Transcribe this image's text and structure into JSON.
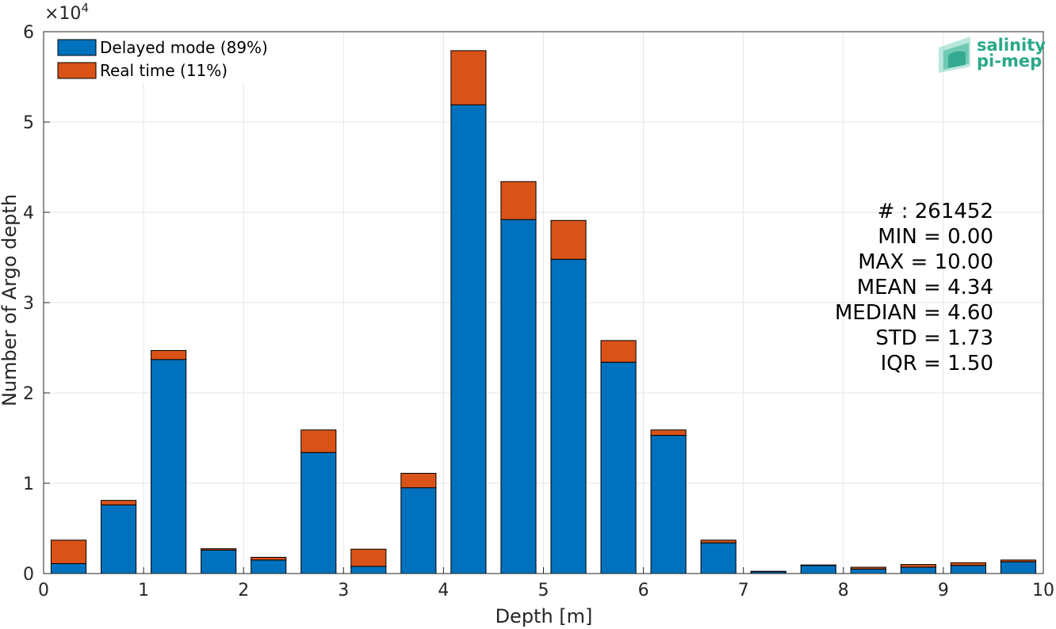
{
  "chart_data": {
    "type": "bar",
    "stacked": true,
    "xlabel": "Depth [m]",
    "ylabel": "Number of Argo depth",
    "y_multiplier_label": "×10",
    "y_multiplier_exponent": "4",
    "xlim": [
      0,
      10
    ],
    "ylim": [
      0,
      60000
    ],
    "xticks": [
      "0",
      "1",
      "2",
      "3",
      "4",
      "5",
      "6",
      "7",
      "8",
      "9",
      "10"
    ],
    "yticks": [
      "0",
      "1",
      "2",
      "3",
      "4",
      "5",
      "6"
    ],
    "grid": true,
    "legend_position": "top-left",
    "bin_centers": [
      0.25,
      0.75,
      1.25,
      1.75,
      2.25,
      2.75,
      3.25,
      3.75,
      4.25,
      4.75,
      5.25,
      5.75,
      6.25,
      6.75,
      7.25,
      7.75,
      8.25,
      8.75,
      9.25,
      9.75
    ],
    "series": [
      {
        "name": "Delayed mode (89%)",
        "color": "#0072BD",
        "values": [
          1100,
          7600,
          23700,
          2600,
          1500,
          13400,
          800,
          9500,
          51900,
          39200,
          34800,
          23400,
          15300,
          3400,
          200,
          900,
          500,
          700,
          900,
          1300
        ]
      },
      {
        "name": "Real time (11%)",
        "color": "#D95319",
        "values": [
          2600,
          500,
          1000,
          150,
          300,
          2500,
          1900,
          1600,
          6000,
          4200,
          4300,
          2400,
          600,
          300,
          50,
          50,
          200,
          300,
          300,
          200
        ]
      }
    ],
    "stats": [
      "# : 261452",
      "MIN = 0.00",
      "MAX =  10.00",
      "MEAN = 4.34",
      "MEDIAN = 4.60",
      "STD = 1.73",
      "IQR = 1.50"
    ]
  },
  "logo": {
    "line1": "salinity",
    "line2": "pi-mep",
    "color": "#2aa889"
  }
}
